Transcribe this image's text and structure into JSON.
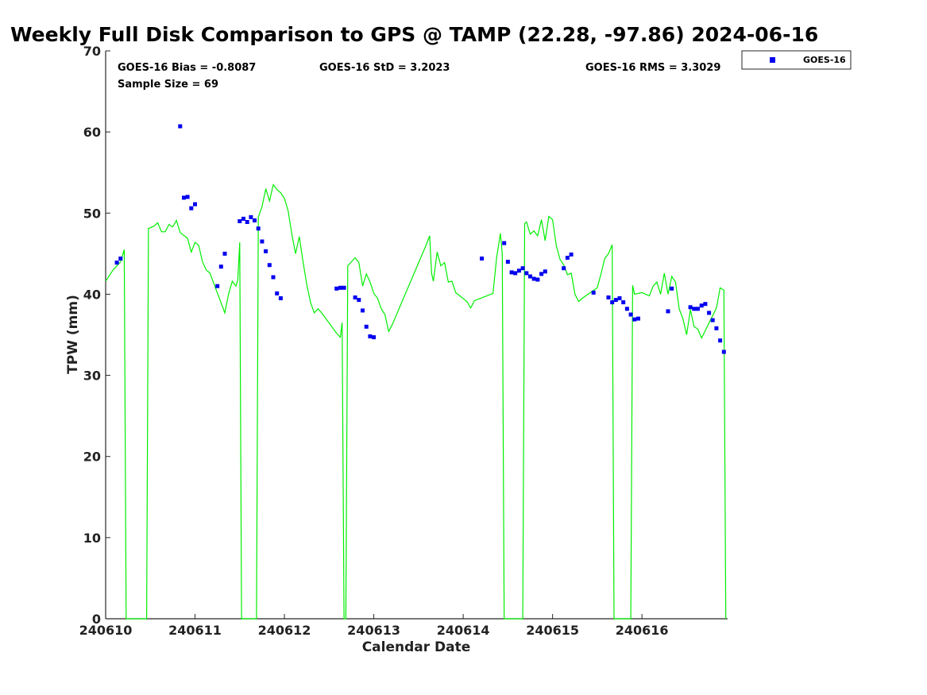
{
  "chart_data": {
    "type": "scatter",
    "title": "Weekly Full Disk Comparison to GPS @ TAMP (22.28, -97.86) 2024-06-16",
    "xlabel": "Calendar Date",
    "ylabel": "TPW (mm)",
    "xlim": [
      "2024-06-10 00:00",
      "2024-06-16 23:00"
    ],
    "ylim": [
      0,
      70
    ],
    "y_ticks": [
      0,
      10,
      20,
      30,
      40,
      50,
      60,
      70
    ],
    "x_ticks": [
      "240610",
      "240611",
      "240612",
      "240613",
      "240614",
      "240615",
      "240616"
    ],
    "grid": false,
    "legend": {
      "position": "top-right",
      "entries": [
        "GOES-16"
      ]
    },
    "stats": {
      "bias": "GOES-16 Bias = -0.8087",
      "std": "GOES-16 StD = 3.2023",
      "rms": "GOES-16 RMS = 3.3029",
      "sample": "Sample Size = 69"
    },
    "series": [
      {
        "name": "GOES-16",
        "kind": "scatter",
        "color": "#0000ee",
        "points": [
          [
            "2024-06-10 03:00",
            43.9
          ],
          [
            "2024-06-10 04:00",
            44.4
          ],
          [
            "2024-06-10 20:00",
            60.7
          ],
          [
            "2024-06-10 21:00",
            51.9
          ],
          [
            "2024-06-10 22:00",
            52.0
          ],
          [
            "2024-06-10 23:00",
            50.6
          ],
          [
            "2024-06-11 00:00",
            51.1
          ],
          [
            "2024-06-11 06:00",
            41.0
          ],
          [
            "2024-06-11 07:00",
            43.4
          ],
          [
            "2024-06-11 08:00",
            45.0
          ],
          [
            "2024-06-11 12:00",
            49.0
          ],
          [
            "2024-06-11 13:00",
            49.3
          ],
          [
            "2024-06-11 14:00",
            48.9
          ],
          [
            "2024-06-11 15:00",
            49.5
          ],
          [
            "2024-06-11 16:00",
            49.1
          ],
          [
            "2024-06-11 17:00",
            48.1
          ],
          [
            "2024-06-11 18:00",
            46.5
          ],
          [
            "2024-06-11 19:00",
            45.3
          ],
          [
            "2024-06-11 20:00",
            43.6
          ],
          [
            "2024-06-11 21:00",
            42.1
          ],
          [
            "2024-06-11 22:00",
            40.1
          ],
          [
            "2024-06-11 23:00",
            39.5
          ],
          [
            "2024-06-12 14:00",
            40.7
          ],
          [
            "2024-06-12 15:00",
            40.8
          ],
          [
            "2024-06-12 16:00",
            40.8
          ],
          [
            "2024-06-12 19:00",
            39.6
          ],
          [
            "2024-06-12 20:00",
            39.3
          ],
          [
            "2024-06-12 21:00",
            38.0
          ],
          [
            "2024-06-12 22:00",
            36.0
          ],
          [
            "2024-06-12 23:00",
            34.8
          ],
          [
            "2024-06-13 00:00",
            34.7
          ],
          [
            "2024-06-14 05:00",
            44.4
          ],
          [
            "2024-06-14 11:00",
            46.3
          ],
          [
            "2024-06-14 12:00",
            44.0
          ],
          [
            "2024-06-14 13:00",
            42.7
          ],
          [
            "2024-06-14 14:00",
            42.6
          ],
          [
            "2024-06-14 15:00",
            42.9
          ],
          [
            "2024-06-14 16:00",
            43.2
          ],
          [
            "2024-06-14 17:00",
            42.6
          ],
          [
            "2024-06-14 18:00",
            42.2
          ],
          [
            "2024-06-14 19:00",
            41.9
          ],
          [
            "2024-06-14 20:00",
            41.8
          ],
          [
            "2024-06-14 21:00",
            42.5
          ],
          [
            "2024-06-14 22:00",
            42.8
          ],
          [
            "2024-06-15 03:00",
            43.2
          ],
          [
            "2024-06-15 04:00",
            44.5
          ],
          [
            "2024-06-15 05:00",
            44.9
          ],
          [
            "2024-06-15 11:00",
            40.2
          ],
          [
            "2024-06-15 15:00",
            39.6
          ],
          [
            "2024-06-15 16:00",
            39.0
          ],
          [
            "2024-06-15 17:00",
            39.3
          ],
          [
            "2024-06-15 18:00",
            39.5
          ],
          [
            "2024-06-15 19:00",
            39.0
          ],
          [
            "2024-06-15 20:00",
            38.2
          ],
          [
            "2024-06-15 21:00",
            37.5
          ],
          [
            "2024-06-15 22:00",
            36.9
          ],
          [
            "2024-06-15 23:00",
            37.0
          ],
          [
            "2024-06-16 07:00",
            37.9
          ],
          [
            "2024-06-16 08:00",
            40.7
          ],
          [
            "2024-06-16 13:00",
            38.4
          ],
          [
            "2024-06-16 14:00",
            38.2
          ],
          [
            "2024-06-16 15:00",
            38.2
          ],
          [
            "2024-06-16 16:00",
            38.6
          ],
          [
            "2024-06-16 17:00",
            38.8
          ],
          [
            "2024-06-16 18:00",
            37.7
          ],
          [
            "2024-06-16 19:00",
            36.8
          ],
          [
            "2024-06-16 20:00",
            35.8
          ],
          [
            "2024-06-16 21:00",
            34.3
          ],
          [
            "2024-06-16 22:00",
            32.9
          ]
        ]
      },
      {
        "name": "",
        "kind": "line",
        "color": "#00ee00",
        "points": [
          [
            "2024-06-10 00:00",
            41.6
          ],
          [
            "2024-06-10 02:00",
            43.0
          ],
          [
            "2024-06-10 04:00",
            44.0
          ],
          [
            "2024-06-10 05:00",
            45.5
          ],
          [
            "2024-06-10 05:30",
            0
          ],
          [
            "2024-06-10 11:00",
            0
          ],
          [
            "2024-06-10 11:30",
            48.1
          ],
          [
            "2024-06-10 13:00",
            48.4
          ],
          [
            "2024-06-10 14:00",
            48.8
          ],
          [
            "2024-06-10 15:00",
            47.7
          ],
          [
            "2024-06-10 16:00",
            47.7
          ],
          [
            "2024-06-10 17:00",
            48.6
          ],
          [
            "2024-06-10 18:00",
            48.3
          ],
          [
            "2024-06-10 19:00",
            49.1
          ],
          [
            "2024-06-10 20:00",
            47.6
          ],
          [
            "2024-06-10 22:00",
            46.9
          ],
          [
            "2024-06-10 23:00",
            45.2
          ],
          [
            "2024-06-11 00:00",
            46.4
          ],
          [
            "2024-06-11 01:00",
            46.0
          ],
          [
            "2024-06-11 02:00",
            44.0
          ],
          [
            "2024-06-11 03:00",
            43.0
          ],
          [
            "2024-06-11 04:00",
            42.6
          ],
          [
            "2024-06-11 08:00",
            37.7
          ],
          [
            "2024-06-11 09:00",
            40.0
          ],
          [
            "2024-06-11 10:00",
            41.6
          ],
          [
            "2024-06-11 11:00",
            41.0
          ],
          [
            "2024-06-11 11:30",
            41.8
          ],
          [
            "2024-06-11 12:00",
            46.4
          ],
          [
            "2024-06-11 12:30",
            0
          ],
          [
            "2024-06-11 16:30",
            0
          ],
          [
            "2024-06-11 17:00",
            49.5
          ],
          [
            "2024-06-11 18:00",
            50.8
          ],
          [
            "2024-06-11 19:00",
            53.0
          ],
          [
            "2024-06-11 20:00",
            51.5
          ],
          [
            "2024-06-11 21:00",
            53.5
          ],
          [
            "2024-06-11 22:00",
            52.9
          ],
          [
            "2024-06-11 23:00",
            52.5
          ],
          [
            "2024-06-12 00:00",
            51.8
          ],
          [
            "2024-06-12 01:00",
            50.3
          ],
          [
            "2024-06-12 02:00",
            47.4
          ],
          [
            "2024-06-12 03:00",
            45.0
          ],
          [
            "2024-06-12 04:00",
            47.1
          ],
          [
            "2024-06-12 05:00",
            44.0
          ],
          [
            "2024-06-12 06:00",
            41.2
          ],
          [
            "2024-06-12 07:00",
            39.0
          ],
          [
            "2024-06-12 08:00",
            37.7
          ],
          [
            "2024-06-12 09:00",
            38.2
          ],
          [
            "2024-06-12 10:00",
            37.7
          ],
          [
            "2024-06-12 14:00",
            35.2
          ],
          [
            "2024-06-12 15:00",
            34.7
          ],
          [
            "2024-06-12 15:30",
            36.5
          ],
          [
            "2024-06-12 16:00",
            0
          ],
          [
            "2024-06-12 16:30",
            0
          ],
          [
            "2024-06-12 17:00",
            43.5
          ],
          [
            "2024-06-12 18:00",
            44.0
          ],
          [
            "2024-06-12 19:00",
            44.5
          ],
          [
            "2024-06-12 20:00",
            43.9
          ],
          [
            "2024-06-12 21:00",
            41.0
          ],
          [
            "2024-06-12 22:00",
            42.5
          ],
          [
            "2024-06-12 23:00",
            41.5
          ],
          [
            "2024-06-13 00:00",
            40.1
          ],
          [
            "2024-06-13 01:00",
            39.5
          ],
          [
            "2024-06-13 02:00",
            38.2
          ],
          [
            "2024-06-13 03:00",
            37.5
          ],
          [
            "2024-06-13 04:00",
            35.4
          ],
          [
            "2024-06-13 05:00",
            36.3
          ],
          [
            "2024-06-13 14:00",
            46.0
          ],
          [
            "2024-06-13 15:00",
            47.2
          ],
          [
            "2024-06-13 15:30",
            42.6
          ],
          [
            "2024-06-13 16:00",
            41.6
          ],
          [
            "2024-06-13 17:00",
            45.2
          ],
          [
            "2024-06-13 18:00",
            43.5
          ],
          [
            "2024-06-13 19:00",
            43.9
          ],
          [
            "2024-06-13 20:00",
            41.5
          ],
          [
            "2024-06-13 21:00",
            41.6
          ],
          [
            "2024-06-13 22:00",
            40.2
          ],
          [
            "2024-06-14 01:00",
            39.1
          ],
          [
            "2024-06-14 02:00",
            38.3
          ],
          [
            "2024-06-14 03:00",
            39.2
          ],
          [
            "2024-06-14 08:00",
            40.1
          ],
          [
            "2024-06-14 09:00",
            44.6
          ],
          [
            "2024-06-14 10:00",
            47.5
          ],
          [
            "2024-06-14 10:30",
            45.0
          ],
          [
            "2024-06-14 11:00",
            0
          ],
          [
            "2024-06-14 16:00",
            0
          ],
          [
            "2024-06-14 16:30",
            48.7
          ],
          [
            "2024-06-14 17:00",
            48.9
          ],
          [
            "2024-06-14 18:00",
            47.4
          ],
          [
            "2024-06-14 19:00",
            47.8
          ],
          [
            "2024-06-14 20:00",
            47.2
          ],
          [
            "2024-06-14 21:00",
            49.2
          ],
          [
            "2024-06-14 22:00",
            46.6
          ],
          [
            "2024-06-14 23:00",
            49.6
          ],
          [
            "2024-06-15 00:00",
            49.2
          ],
          [
            "2024-06-15 01:00",
            46.0
          ],
          [
            "2024-06-15 02:00",
            44.3
          ],
          [
            "2024-06-15 03:00",
            43.6
          ],
          [
            "2024-06-15 04:00",
            42.4
          ],
          [
            "2024-06-15 05:00",
            42.6
          ],
          [
            "2024-06-15 06:00",
            40.0
          ],
          [
            "2024-06-15 07:00",
            39.1
          ],
          [
            "2024-06-15 08:00",
            39.5
          ],
          [
            "2024-06-15 12:00",
            40.8
          ],
          [
            "2024-06-15 13:00",
            42.5
          ],
          [
            "2024-06-15 14:00",
            44.4
          ],
          [
            "2024-06-15 15:00",
            45.0
          ],
          [
            "2024-06-15 16:00",
            46.1
          ],
          [
            "2024-06-15 16:30",
            0
          ],
          [
            "2024-06-15 21:00",
            0
          ],
          [
            "2024-06-15 21:30",
            41.1
          ],
          [
            "2024-06-15 22:00",
            40.0
          ],
          [
            "2024-06-16 00:00",
            40.2
          ],
          [
            "2024-06-16 02:00",
            39.8
          ],
          [
            "2024-06-16 03:00",
            41.0
          ],
          [
            "2024-06-16 04:00",
            41.5
          ],
          [
            "2024-06-16 05:00",
            40.0
          ],
          [
            "2024-06-16 06:00",
            42.6
          ],
          [
            "2024-06-16 07:00",
            40.0
          ],
          [
            "2024-06-16 08:00",
            42.2
          ],
          [
            "2024-06-16 09:00",
            41.5
          ],
          [
            "2024-06-16 10:00",
            38.2
          ],
          [
            "2024-06-16 11:00",
            37.0
          ],
          [
            "2024-06-16 12:00",
            35.0
          ],
          [
            "2024-06-16 13:00",
            38.1
          ],
          [
            "2024-06-16 14:00",
            36.0
          ],
          [
            "2024-06-16 15:00",
            35.7
          ],
          [
            "2024-06-16 16:00",
            34.6
          ],
          [
            "2024-06-16 20:00",
            38.3
          ],
          [
            "2024-06-16 21:00",
            40.8
          ],
          [
            "2024-06-16 22:00",
            40.5
          ],
          [
            "2024-06-16 22:30",
            0
          ]
        ]
      }
    ]
  }
}
